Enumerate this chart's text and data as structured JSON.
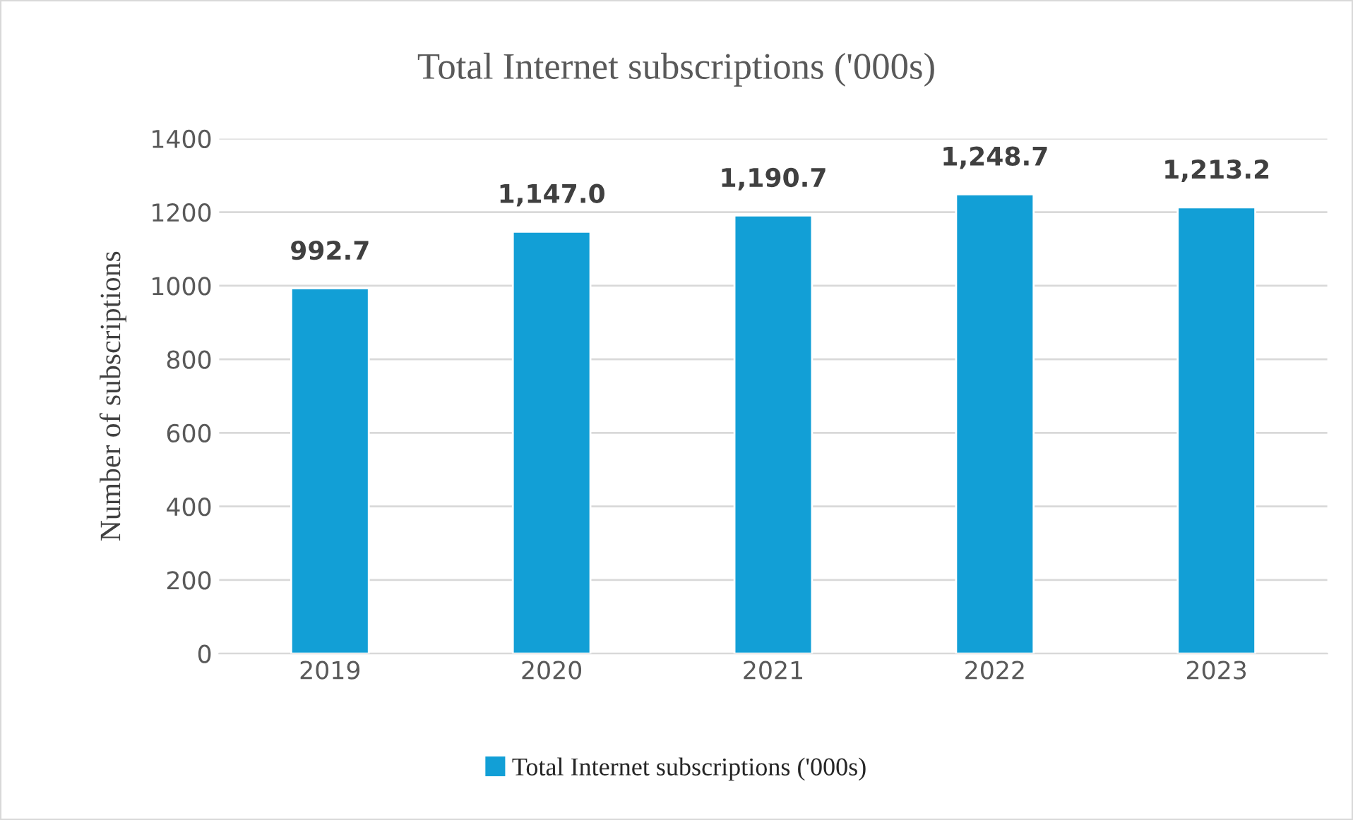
{
  "chart_data": {
    "type": "bar",
    "title": "Total Internet subscriptions ('000s)",
    "ylabel": "Number of subscriptions",
    "categories": [
      "2019",
      "2020",
      "2021",
      "2022",
      "2023"
    ],
    "series": [
      {
        "name": "Total Internet subscriptions ('000s)",
        "color": "#129fd6",
        "values": [
          992.7,
          1147.0,
          1190.7,
          1248.7,
          1213.2
        ],
        "value_labels": [
          "992.7",
          "1,147.0",
          "1,190.7",
          "1,248.7",
          "1,213.2"
        ]
      }
    ],
    "ylim": [
      0,
      1400
    ],
    "yticks": [
      0,
      200,
      400,
      600,
      800,
      1000,
      1200,
      1400
    ],
    "grid": "y",
    "legend": "bottom"
  }
}
